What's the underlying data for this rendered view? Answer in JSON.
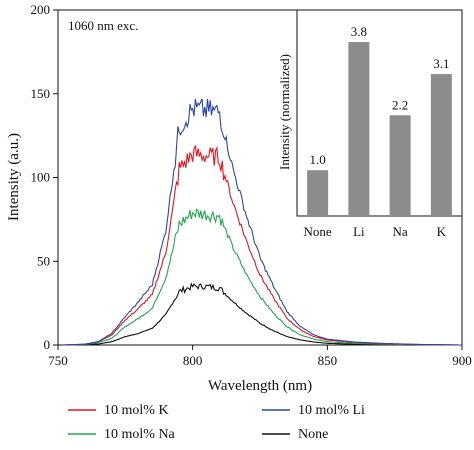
{
  "chart_data": [
    {
      "type": "line",
      "title": "",
      "annotation": "1060 nm exc.",
      "xlabel": "Wavelength (nm)",
      "ylabel": "Intensity (a.u.)",
      "xlim": [
        750,
        900
      ],
      "ylim": [
        0,
        200
      ],
      "xticks": [
        "750",
        "800",
        "850",
        "900"
      ],
      "yticks": [
        "0",
        "50",
        "100",
        "150",
        "200"
      ],
      "legend_position": "bottom",
      "series": [
        {
          "name": "10 mol% K",
          "color": "#e8141c",
          "peak": 115,
          "x": [
            752,
            760,
            765,
            770,
            775,
            780,
            785,
            790,
            795,
            800,
            805,
            810,
            815,
            820,
            825,
            830,
            835,
            840,
            845,
            850,
            860,
            870,
            880,
            890,
            900
          ],
          "y": [
            0,
            0.5,
            2,
            6,
            15,
            22,
            30,
            55,
            105,
            114,
            113,
            112,
            85,
            62,
            42,
            28,
            16,
            9,
            5,
            3,
            1.5,
            0.8,
            0.4,
            0.2,
            0
          ]
        },
        {
          "name": "10 mol% Li",
          "color": "#2a47a8",
          "peak": 142,
          "x": [
            752,
            760,
            765,
            770,
            775,
            780,
            785,
            790,
            795,
            800,
            805,
            810,
            815,
            820,
            825,
            830,
            835,
            840,
            845,
            850,
            860,
            870,
            880,
            890,
            900
          ],
          "y": [
            0,
            0.5,
            2,
            7,
            17,
            26,
            36,
            68,
            130,
            141,
            140,
            139,
            105,
            77,
            52,
            35,
            20,
            11,
            6,
            3.5,
            1.8,
            1,
            0.5,
            0.2,
            0
          ]
        },
        {
          "name": "10 mol% Na",
          "color": "#1faa4a",
          "peak": 80,
          "x": [
            752,
            760,
            765,
            770,
            775,
            780,
            785,
            790,
            795,
            800,
            805,
            810,
            815,
            820,
            825,
            830,
            835,
            840,
            845,
            850,
            860,
            870,
            880,
            890,
            900
          ],
          "y": [
            0,
            0.3,
            1.5,
            4,
            11,
            16,
            22,
            40,
            72,
            79,
            78,
            77,
            58,
            42,
            29,
            19,
            11,
            6,
            3.5,
            2,
            1,
            0.5,
            0.3,
            0.1,
            0
          ]
        },
        {
          "name": "None",
          "color": "#111111",
          "peak": 36,
          "x": [
            752,
            760,
            765,
            770,
            775,
            780,
            785,
            790,
            795,
            800,
            805,
            810,
            815,
            820,
            825,
            830,
            835,
            840,
            845,
            850,
            860,
            870,
            880,
            890,
            900
          ],
          "y": [
            0,
            0.2,
            0.6,
            2,
            5,
            7,
            10,
            18,
            32,
            35,
            35,
            34,
            26,
            19,
            13,
            8.5,
            5,
            3,
            1.8,
            1,
            0.5,
            0.3,
            0.1,
            0.05,
            0
          ]
        }
      ]
    },
    {
      "type": "bar",
      "title": "",
      "ylabel": "Intensity (normalized)",
      "categories": [
        "None",
        "Li",
        "Na",
        "K"
      ],
      "values": [
        1.0,
        3.8,
        2.2,
        3.1
      ],
      "value_labels": [
        "1.0",
        "3.8",
        "2.2",
        "3.1"
      ],
      "bar_color": "#8c8c8c",
      "ylim": [
        0,
        4.5
      ]
    }
  ]
}
